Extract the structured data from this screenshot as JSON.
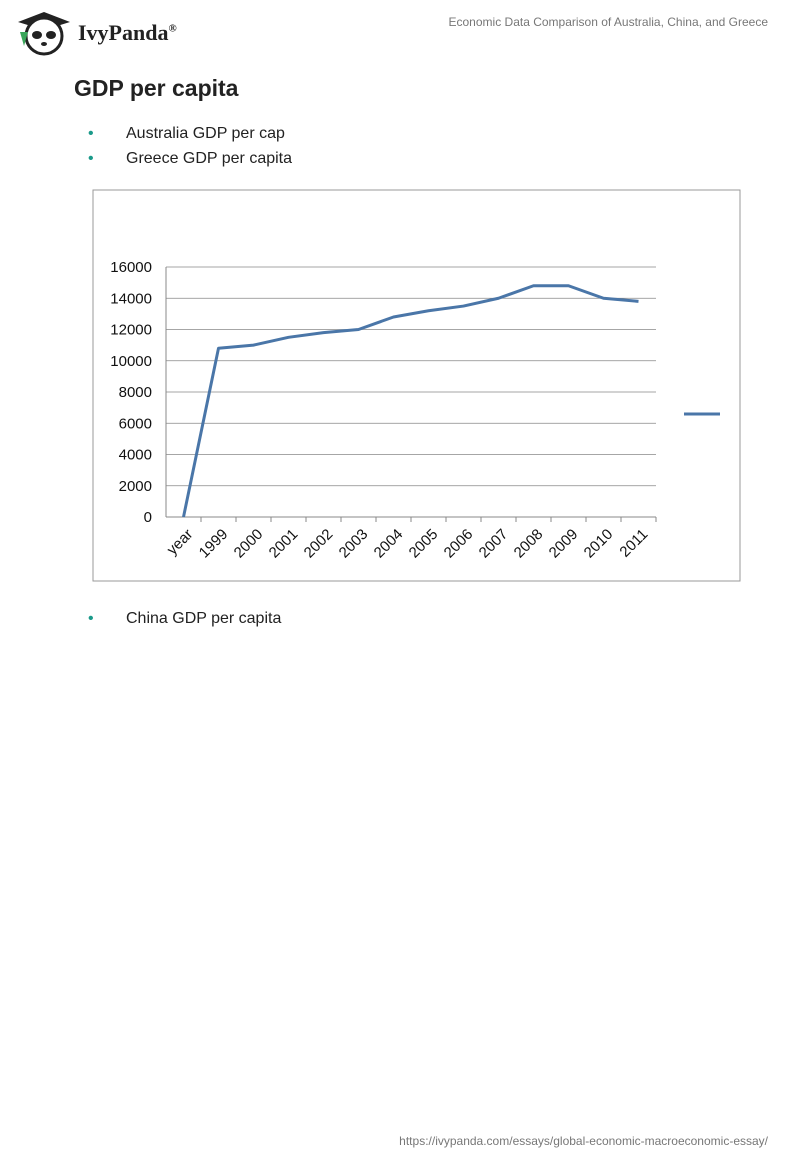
{
  "header": {
    "logo_text": "IvyPanda",
    "logo_mark": "®",
    "doc_title": "Economic Data Comparison of Australia, China, and Greece"
  },
  "heading": "GDP per capita",
  "bullets_before": [
    "Australia GDP per cap",
    "Greece GDP per capita"
  ],
  "chart_data": {
    "type": "line",
    "categories": [
      "year",
      "1999",
      "2000",
      "2001",
      "2002",
      "2003",
      "2004",
      "2005",
      "2006",
      "2007",
      "2008",
      "2009",
      "2010",
      "2011"
    ],
    "series": [
      {
        "color": "#4a76a8",
        "values": [
          0,
          10800,
          11000,
          11500,
          11800,
          12000,
          12800,
          13200,
          13500,
          14000,
          14800,
          14800,
          14000,
          13800
        ]
      }
    ],
    "ylim": [
      0,
      16000
    ],
    "yticks": [
      0,
      2000,
      4000,
      6000,
      8000,
      10000,
      12000,
      14000,
      16000
    ],
    "grid": true,
    "legend": "right"
  },
  "bullets_after": [
    "China GDP per capita"
  ],
  "footer": {
    "url": "https://ivypanda.com/essays/global-economic-macroeconomic-essay/"
  }
}
